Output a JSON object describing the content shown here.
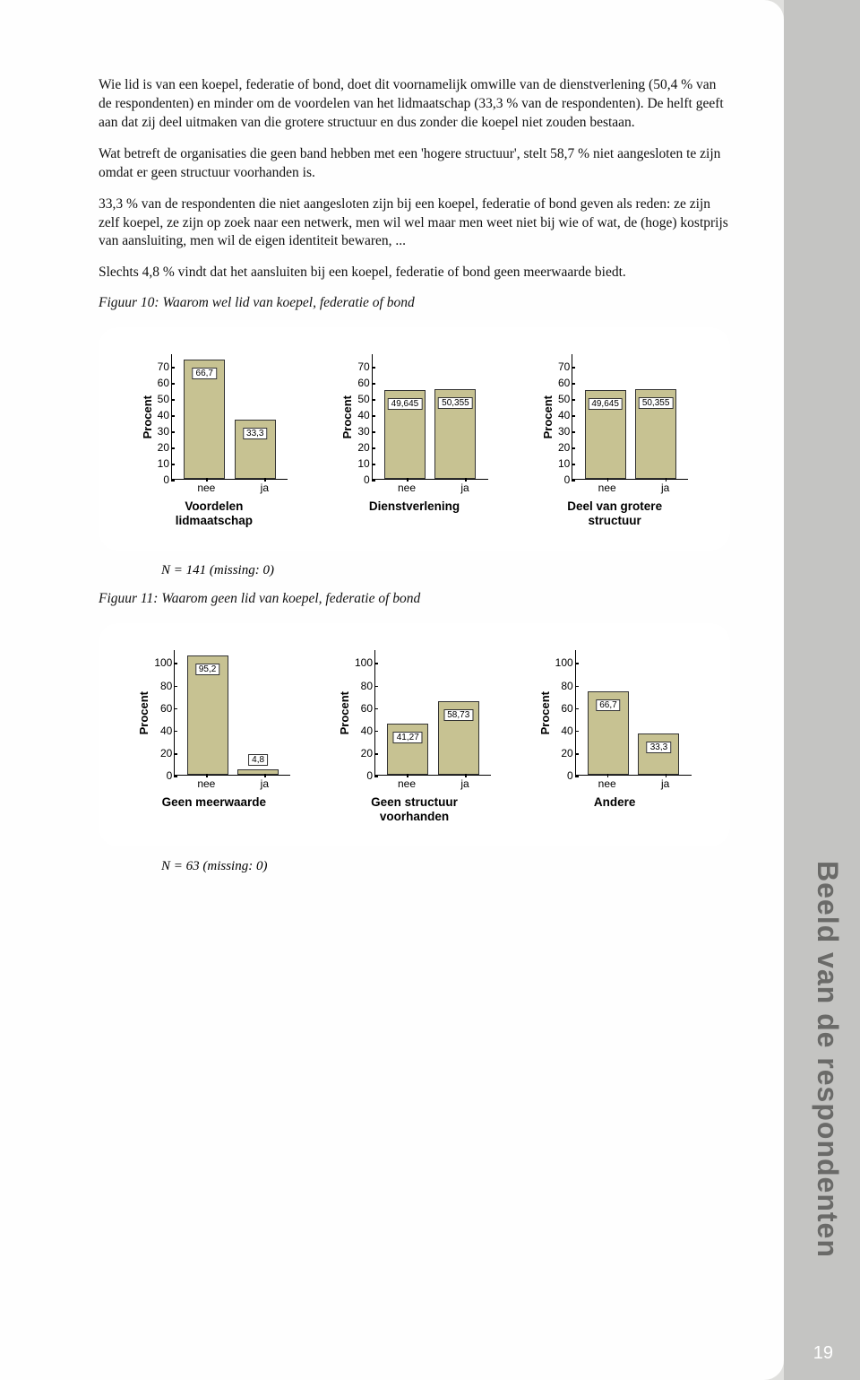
{
  "paragraphs": {
    "p1": "Wie lid is van een koepel, federatie of bond, doet dit voornamelijk omwille van de dienstverlening (50,4 % van de respondenten) en minder om de voordelen van het lidmaatschap (33,3 % van de respondenten). De helft geeft aan dat zij deel uitmaken van die grotere structuur en dus zonder die koepel niet zouden bestaan.",
    "p2": "Wat betreft de organisaties die geen band hebben met een 'hogere structuur', stelt 58,7 % niet aangesloten te zijn omdat er geen structuur voorhanden is.",
    "p3": "33,3 % van de respondenten die niet aangesloten zijn bij een koepel, federatie of bond geven als reden: ze zijn zelf koepel, ze zijn op zoek naar een netwerk, men wil wel maar men weet niet bij wie of wat, de (hoge) kostprijs van aansluiting, men wil de eigen identiteit bewaren, ...",
    "p4": "Slechts 4,8 % vindt dat het aansluiten bij een koepel, federatie of bond geen meerwaarde biedt."
  },
  "fig10": {
    "caption": "Figuur 10: Waarom wel lid van koepel, federatie of bond",
    "y_label": "Procent",
    "y_max": 70,
    "y_ticks": [
      "70",
      "60",
      "50",
      "40",
      "30",
      "20",
      "10",
      "0"
    ],
    "x_cats": [
      "nee",
      "ja"
    ],
    "bar_color": "#c7c292",
    "charts": [
      {
        "title": "Voordelen\nlidmaatschap",
        "values": [
          66.7,
          33.3
        ],
        "labels": [
          "66,7",
          "33,3"
        ]
      },
      {
        "title": "Dienstverlening",
        "values": [
          49.645,
          50.355
        ],
        "labels": [
          "49,645",
          "50,355"
        ]
      },
      {
        "title": "Deel van grotere\nstructuur",
        "values": [
          49.645,
          50.355
        ],
        "labels": [
          "49,645",
          "50,355"
        ]
      }
    ],
    "note": "N = 141 (missing: 0)"
  },
  "fig11": {
    "caption": "Figuur 11: Waarom geen lid van koepel, federatie of bond",
    "y_label": "Procent",
    "y_max": 100,
    "y_ticks": [
      "100",
      "80",
      "60",
      "40",
      "20",
      "0"
    ],
    "x_cats": [
      "nee",
      "ja"
    ],
    "bar_color": "#c7c292",
    "charts": [
      {
        "title": "Geen meerwaarde",
        "values": [
          95.2,
          4.8
        ],
        "labels": [
          "95,2",
          "4,8"
        ]
      },
      {
        "title": "Geen structuur\nvoorhanden",
        "values": [
          41.27,
          58.73
        ],
        "labels": [
          "41,27",
          "58,73"
        ]
      },
      {
        "title": "Andere",
        "values": [
          66.7,
          33.3
        ],
        "labels": [
          "66,7",
          "33,3"
        ]
      }
    ],
    "note": "N = 63 (missing: 0)"
  },
  "side_title": "Beeld van de respondenten",
  "page_number": "19"
}
